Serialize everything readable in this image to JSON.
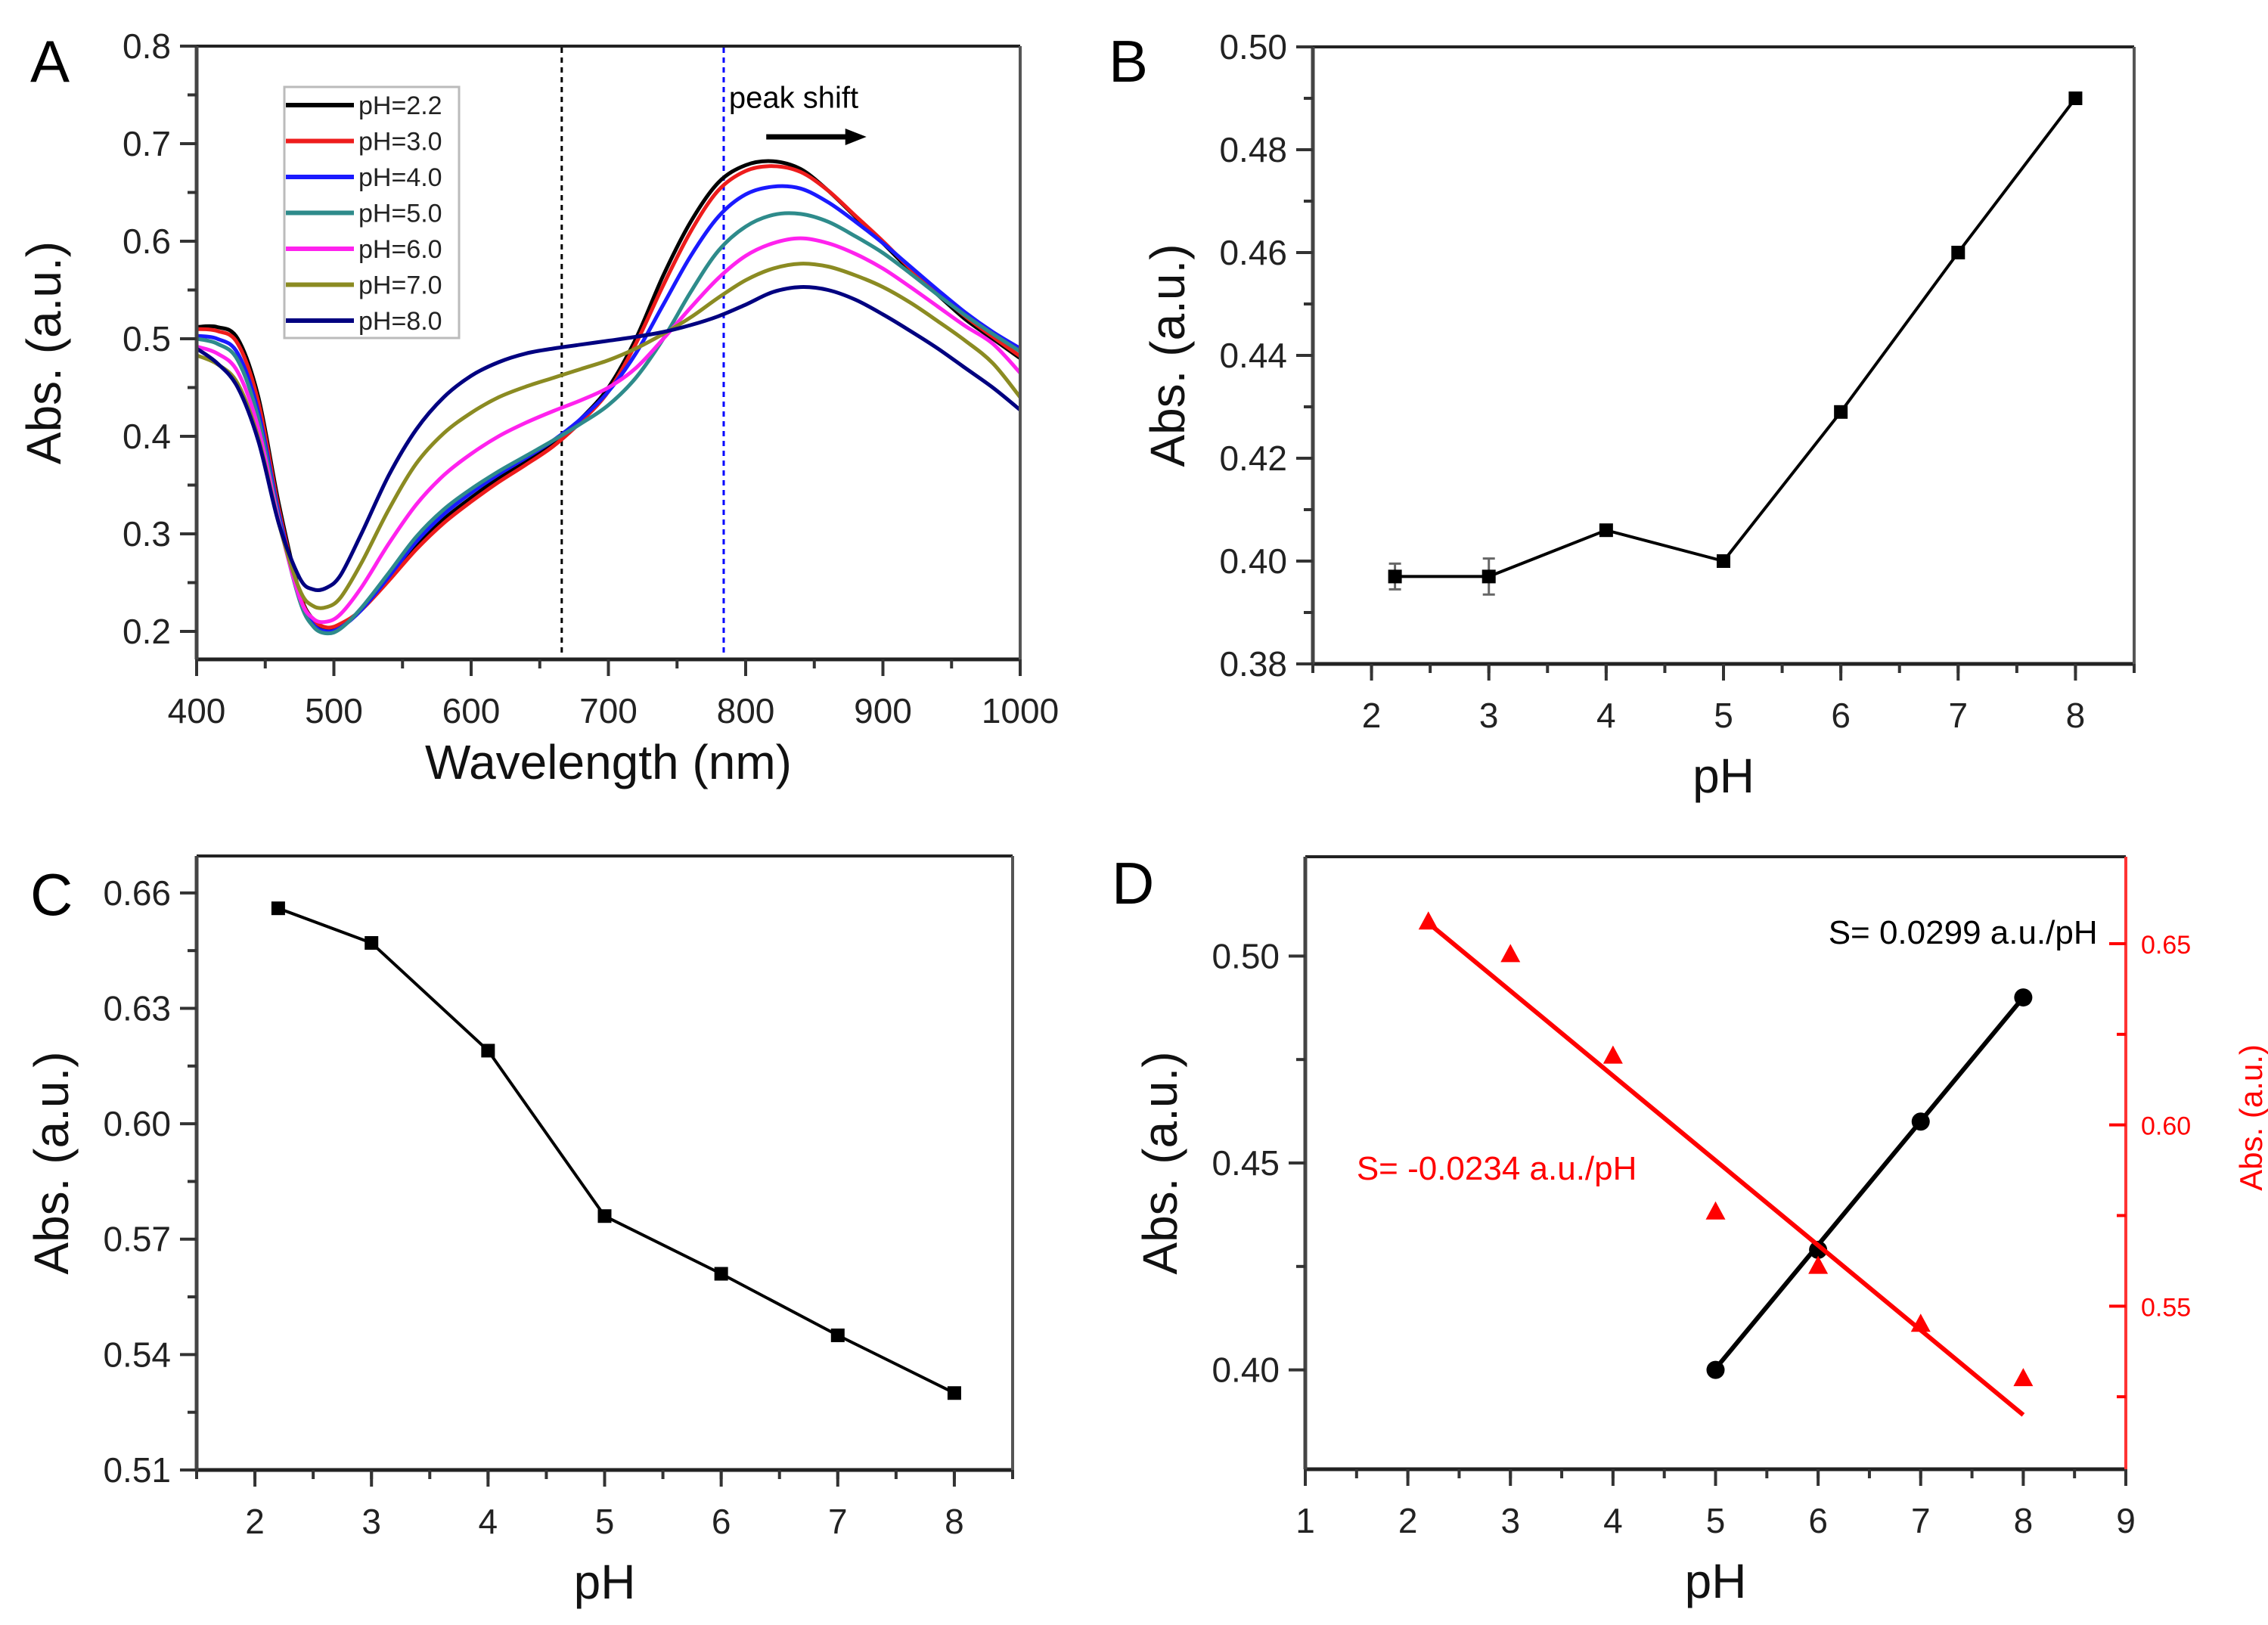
{
  "figure": {
    "panel_labels": [
      "A",
      "B",
      "C",
      "D"
    ]
  },
  "chart_data": [
    {
      "id": "A",
      "type": "line",
      "title": "",
      "xlabel": "Wavelength (nm)",
      "ylabel": "Abs. (a.u.)",
      "xlim": [
        400,
        1000
      ],
      "ylim": [
        0.17,
        0.8
      ],
      "xticks": [
        400,
        500,
        600,
        700,
        800,
        900,
        1000
      ],
      "yticks": [
        0.2,
        0.3,
        0.4,
        0.5,
        0.6,
        0.7,
        0.8
      ],
      "grid": false,
      "legend_position": "top-left",
      "annotations": [
        {
          "text": "peak shift",
          "x": 835,
          "y": 0.737
        },
        {
          "type": "arrow",
          "from": [
            815,
            0.707
          ],
          "to": [
            888,
            0.707
          ],
          "color": "#000000"
        },
        {
          "type": "vline",
          "x": 666,
          "style": "dashed",
          "color": "#000000"
        },
        {
          "type": "vline",
          "x": 784,
          "style": "dashed",
          "color": "#0000ff"
        }
      ],
      "series": [
        {
          "name": "pH=2.2",
          "color": "#000000",
          "x": [
            400,
            415,
            430,
            445,
            460,
            475,
            485,
            495,
            505,
            520,
            540,
            560,
            580,
            600,
            620,
            640,
            660,
            680,
            700,
            720,
            740,
            760,
            780,
            800,
            820,
            840,
            860,
            880,
            900,
            920,
            940,
            960,
            980,
            1000
          ],
          "y": [
            0.512,
            0.512,
            0.5,
            0.44,
            0.33,
            0.24,
            0.212,
            0.202,
            0.205,
            0.222,
            0.255,
            0.288,
            0.315,
            0.337,
            0.357,
            0.374,
            0.393,
            0.418,
            0.45,
            0.5,
            0.565,
            0.62,
            0.66,
            0.678,
            0.682,
            0.674,
            0.652,
            0.625,
            0.598,
            0.57,
            0.545,
            0.52,
            0.5,
            0.48
          ]
        },
        {
          "name": "pH=3.0",
          "color": "#ee1c1c",
          "x": [
            400,
            415,
            430,
            445,
            460,
            475,
            485,
            495,
            505,
            520,
            540,
            560,
            580,
            600,
            620,
            640,
            660,
            680,
            700,
            720,
            740,
            760,
            780,
            800,
            820,
            840,
            860,
            880,
            900,
            920,
            940,
            960,
            980,
            1000
          ],
          "y": [
            0.51,
            0.508,
            0.495,
            0.435,
            0.325,
            0.238,
            0.212,
            0.204,
            0.208,
            0.222,
            0.252,
            0.284,
            0.311,
            0.333,
            0.353,
            0.371,
            0.39,
            0.415,
            0.446,
            0.495,
            0.555,
            0.61,
            0.652,
            0.672,
            0.677,
            0.671,
            0.652,
            0.626,
            0.6,
            0.572,
            0.547,
            0.523,
            0.502,
            0.482
          ]
        },
        {
          "name": "pH=4.0",
          "color": "#1a1aff",
          "x": [
            400,
            415,
            430,
            445,
            460,
            475,
            485,
            495,
            505,
            520,
            540,
            560,
            580,
            600,
            620,
            640,
            660,
            680,
            700,
            720,
            740,
            760,
            780,
            800,
            820,
            840,
            860,
            880,
            900,
            920,
            940,
            960,
            980,
            1000
          ],
          "y": [
            0.503,
            0.5,
            0.485,
            0.425,
            0.32,
            0.235,
            0.207,
            0.2,
            0.204,
            0.222,
            0.256,
            0.292,
            0.32,
            0.342,
            0.361,
            0.378,
            0.396,
            0.418,
            0.446,
            0.485,
            0.535,
            0.585,
            0.625,
            0.648,
            0.656,
            0.654,
            0.64,
            0.62,
            0.598,
            0.574,
            0.55,
            0.527,
            0.507,
            0.49
          ]
        },
        {
          "name": "pH=5.0",
          "color": "#2e8b8b",
          "x": [
            400,
            415,
            430,
            445,
            460,
            475,
            485,
            495,
            505,
            520,
            540,
            560,
            580,
            600,
            620,
            640,
            660,
            680,
            700,
            720,
            740,
            760,
            780,
            800,
            820,
            840,
            860,
            880,
            900,
            920,
            940,
            960,
            980,
            1000
          ],
          "y": [
            0.5,
            0.495,
            0.478,
            0.418,
            0.315,
            0.232,
            0.205,
            0.198,
            0.203,
            0.224,
            0.26,
            0.297,
            0.325,
            0.346,
            0.364,
            0.38,
            0.396,
            0.413,
            0.432,
            0.46,
            0.5,
            0.548,
            0.59,
            0.615,
            0.627,
            0.628,
            0.62,
            0.605,
            0.588,
            0.567,
            0.545,
            0.524,
            0.505,
            0.487
          ]
        },
        {
          "name": "pH=6.0",
          "color": "#ff22ee",
          "x": [
            400,
            415,
            430,
            445,
            460,
            475,
            485,
            495,
            505,
            520,
            540,
            560,
            580,
            600,
            620,
            640,
            660,
            680,
            700,
            720,
            740,
            760,
            780,
            800,
            820,
            840,
            860,
            880,
            900,
            920,
            940,
            960,
            980,
            1000
          ],
          "y": [
            0.492,
            0.485,
            0.466,
            0.408,
            0.312,
            0.235,
            0.213,
            0.21,
            0.218,
            0.245,
            0.29,
            0.33,
            0.36,
            0.382,
            0.4,
            0.414,
            0.426,
            0.437,
            0.45,
            0.47,
            0.5,
            0.532,
            0.562,
            0.585,
            0.598,
            0.603,
            0.598,
            0.587,
            0.572,
            0.553,
            0.533,
            0.513,
            0.495,
            0.465
          ]
        },
        {
          "name": "pH=7.0",
          "color": "#8b8b22",
          "x": [
            400,
            415,
            430,
            445,
            460,
            475,
            485,
            495,
            505,
            520,
            540,
            560,
            580,
            600,
            620,
            640,
            660,
            680,
            700,
            720,
            740,
            760,
            780,
            800,
            820,
            840,
            860,
            880,
            900,
            920,
            940,
            960,
            980,
            1000
          ],
          "y": [
            0.483,
            0.474,
            0.454,
            0.398,
            0.31,
            0.243,
            0.226,
            0.225,
            0.235,
            0.27,
            0.325,
            0.372,
            0.403,
            0.424,
            0.44,
            0.451,
            0.46,
            0.469,
            0.478,
            0.49,
            0.505,
            0.522,
            0.542,
            0.56,
            0.572,
            0.577,
            0.574,
            0.565,
            0.553,
            0.537,
            0.518,
            0.498,
            0.475,
            0.44
          ]
        },
        {
          "name": "pH=8.0",
          "color": "#000080",
          "x": [
            400,
            415,
            430,
            445,
            460,
            475,
            485,
            495,
            505,
            520,
            540,
            560,
            580,
            600,
            620,
            640,
            660,
            680,
            700,
            720,
            740,
            760,
            780,
            800,
            820,
            840,
            860,
            880,
            900,
            920,
            940,
            960,
            980,
            1000
          ],
          "y": [
            0.49,
            0.475,
            0.45,
            0.395,
            0.31,
            0.255,
            0.243,
            0.245,
            0.258,
            0.3,
            0.36,
            0.407,
            0.44,
            0.462,
            0.476,
            0.485,
            0.49,
            0.494,
            0.498,
            0.502,
            0.507,
            0.514,
            0.523,
            0.535,
            0.548,
            0.553,
            0.55,
            0.54,
            0.525,
            0.508,
            0.49,
            0.47,
            0.45,
            0.427
          ]
        }
      ]
    },
    {
      "id": "B",
      "type": "line",
      "title": "",
      "xlabel": "pH",
      "ylabel": "Abs. (a.u.)",
      "xlim": [
        1.5,
        8.5
      ],
      "ylim": [
        0.38,
        0.5
      ],
      "xticks": [
        2,
        3,
        4,
        5,
        6,
        7,
        8
      ],
      "yticks": [
        0.38,
        0.4,
        0.42,
        0.44,
        0.46,
        0.48,
        0.5
      ],
      "ytick_labels": [
        "0.38",
        "0.40",
        "0.42",
        "0.44",
        "0.46",
        "0.48",
        "0.50"
      ],
      "grid": false,
      "series": [
        {
          "name": "Abs",
          "color": "#000000",
          "marker": "square",
          "x": [
            2.2,
            3,
            4,
            5,
            6,
            7,
            8
          ],
          "y": [
            0.397,
            0.397,
            0.406,
            0.4,
            0.429,
            0.46,
            0.49
          ],
          "yerr": [
            0.0025,
            0.0035,
            0.0005,
            0.0005,
            0.0005,
            0.0005,
            0.0005
          ]
        }
      ]
    },
    {
      "id": "C",
      "type": "line",
      "title": "",
      "xlabel": "pH",
      "ylabel": "Abs. (a.u.)",
      "xlim": [
        1.5,
        8.5
      ],
      "ylim": [
        0.51,
        0.6696
      ],
      "xticks": [
        2,
        3,
        4,
        5,
        6,
        7,
        8
      ],
      "yticks": [
        0.51,
        0.54,
        0.57,
        0.6,
        0.63,
        0.66
      ],
      "ytick_labels": [
        "0.51",
        "0.54",
        "0.57",
        "0.60",
        "0.63",
        "0.66"
      ],
      "grid": false,
      "series": [
        {
          "name": "Abs",
          "color": "#000000",
          "marker": "square",
          "x": [
            2.2,
            3,
            4,
            5,
            6,
            7,
            8
          ],
          "y": [
            0.656,
            0.647,
            0.619,
            0.576,
            0.561,
            0.545,
            0.53
          ]
        }
      ]
    },
    {
      "id": "D",
      "type": "scatter",
      "title": "",
      "xlabel": "pH",
      "ylabel": "Abs. (a.u.)",
      "ylabel_right": "Abs. (a.u.)",
      "xlim": [
        1,
        9
      ],
      "ylim": [
        0.376,
        0.524
      ],
      "ylim_right": [
        0.505,
        0.674
      ],
      "xticks": [
        1,
        2,
        3,
        4,
        5,
        6,
        7,
        8,
        9
      ],
      "yticks": [
        0.4,
        0.45,
        0.5
      ],
      "ytick_labels": [
        "0.40",
        "0.45",
        "0.50"
      ],
      "yticks_right": [
        0.55,
        0.6,
        0.65
      ],
      "ytick_labels_right": [
        "0.55",
        "0.60",
        "0.65"
      ],
      "grid": false,
      "annotations": [
        {
          "text": "S= 0.0299 a.u./pH",
          "color": "#000000",
          "x": 6.1,
          "y": 0.503
        },
        {
          "text": "S= -0.0234 a.u./pH",
          "color": "#ff0000",
          "x": 1.5,
          "y": 0.446
        }
      ],
      "series": [
        {
          "name": "Abs (left)",
          "axis": "left",
          "color": "#000000",
          "marker": "circle",
          "x": [
            5,
            6,
            7,
            8
          ],
          "y": [
            0.4,
            0.429,
            0.46,
            0.49
          ],
          "fit": {
            "slope": 0.0299,
            "x_range": [
              5,
              8
            ],
            "y_start": 0.4003
          }
        },
        {
          "name": "Abs (right)",
          "axis": "right",
          "color": "#ff0000",
          "marker": "triangle",
          "x": [
            2.2,
            3,
            4,
            5,
            6,
            7,
            8
          ],
          "y": [
            0.656,
            0.647,
            0.619,
            0.576,
            0.561,
            0.545,
            0.53
          ],
          "fit": {
            "slope": -0.0234,
            "x_range": [
              2.2,
              8
            ],
            "y_start": 0.6557
          }
        }
      ]
    }
  ]
}
